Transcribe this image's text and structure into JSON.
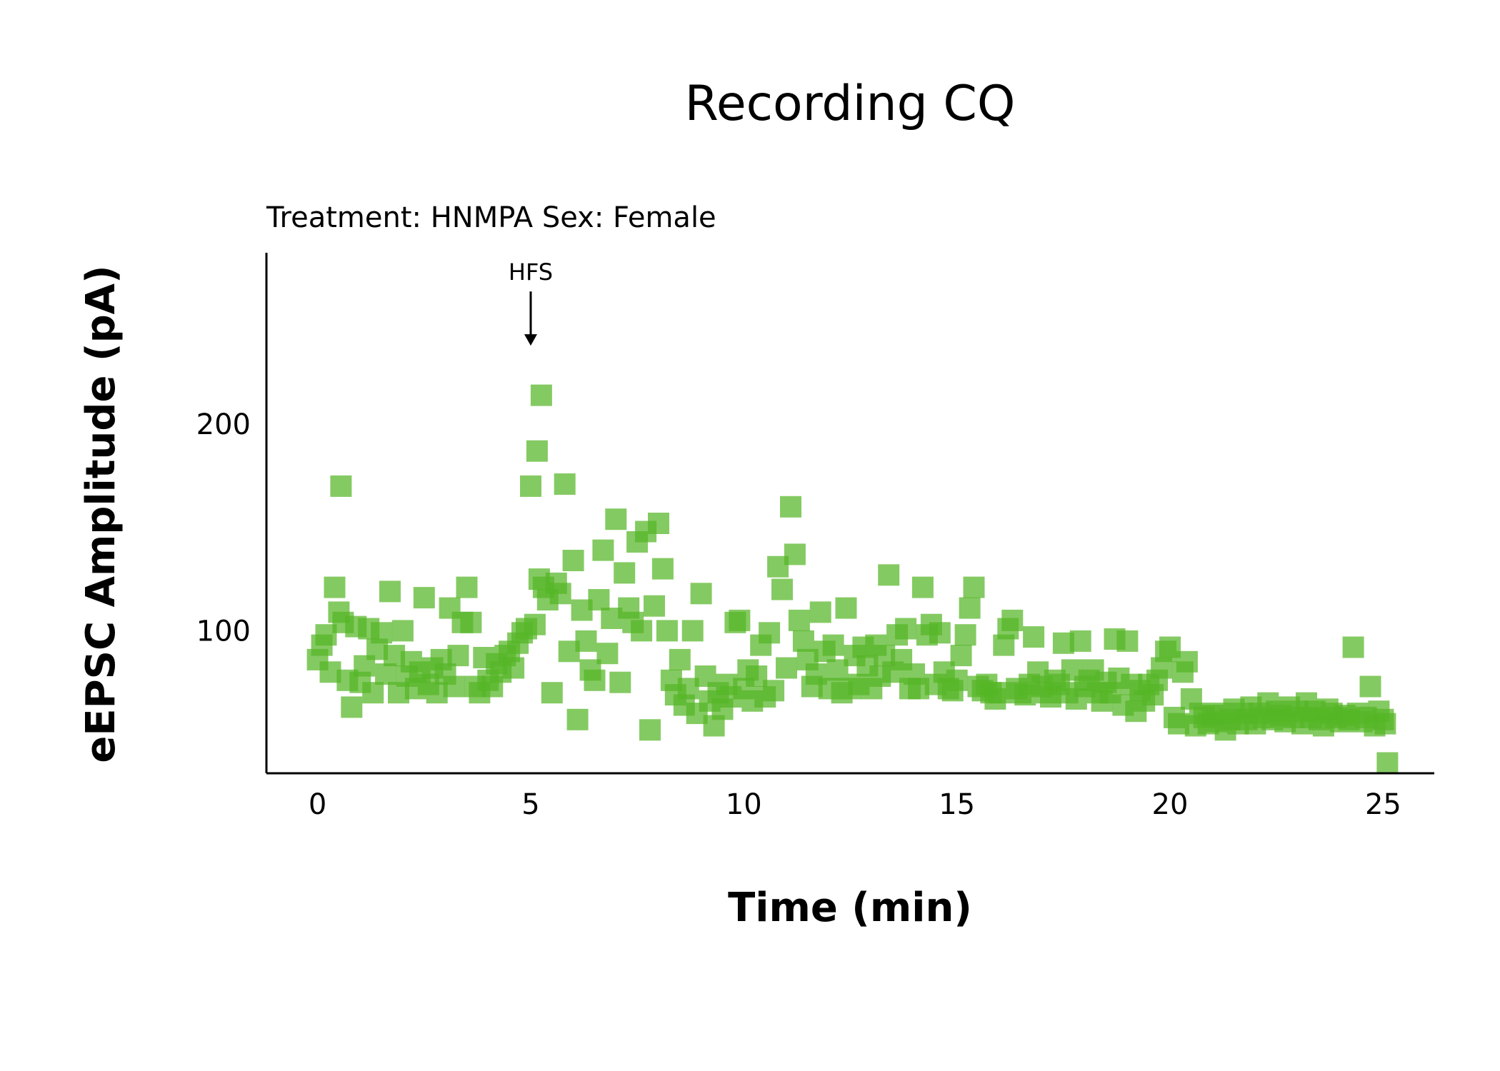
{
  "chart_data": {
    "type": "scatter",
    "title": "Recording CQ",
    "subtitle": "Treatment: HNMPA  Sex: Female",
    "xlabel": "Time (min)",
    "ylabel": "eEPSC Amplitude (pA)",
    "xlim": [
      -1.2,
      26.2
    ],
    "ylim": [
      31,
      283
    ],
    "xticks": [
      "0",
      "5",
      "10",
      "15",
      "20",
      "25"
    ],
    "yticks": [
      "100",
      "200"
    ],
    "grid": false,
    "legend": "none",
    "marker_color": "#55b526",
    "annotation": {
      "text": "HFS",
      "x": 5,
      "y": 238
    },
    "points": [
      [
        0.0,
        86
      ],
      [
        0.1,
        93
      ],
      [
        0.2,
        98
      ],
      [
        0.3,
        80
      ],
      [
        0.4,
        121
      ],
      [
        0.5,
        109
      ],
      [
        0.55,
        170
      ],
      [
        0.6,
        104
      ],
      [
        0.7,
        76
      ],
      [
        0.8,
        63
      ],
      [
        0.9,
        102
      ],
      [
        1.0,
        75
      ],
      [
        1.1,
        83
      ],
      [
        1.2,
        101
      ],
      [
        1.3,
        70
      ],
      [
        1.4,
        91
      ],
      [
        1.5,
        99
      ],
      [
        1.6,
        79
      ],
      [
        1.7,
        119
      ],
      [
        1.8,
        88
      ],
      [
        1.9,
        70
      ],
      [
        2.0,
        100
      ],
      [
        2.1,
        78
      ],
      [
        2.2,
        85
      ],
      [
        2.3,
        72
      ],
      [
        2.4,
        80
      ],
      [
        2.5,
        116
      ],
      [
        2.6,
        74
      ],
      [
        2.7,
        82
      ],
      [
        2.8,
        70
      ],
      [
        2.9,
        86
      ],
      [
        3.0,
        79
      ],
      [
        3.1,
        111
      ],
      [
        3.2,
        73
      ],
      [
        3.3,
        88
      ],
      [
        3.4,
        104
      ],
      [
        3.5,
        121
      ],
      [
        3.6,
        104
      ],
      [
        3.7,
        73
      ],
      [
        3.8,
        70
      ],
      [
        3.9,
        87
      ],
      [
        4.0,
        76
      ],
      [
        4.1,
        73
      ],
      [
        4.2,
        84
      ],
      [
        4.3,
        80
      ],
      [
        4.4,
        88
      ],
      [
        4.5,
        90
      ],
      [
        4.6,
        82
      ],
      [
        4.7,
        94
      ],
      [
        4.8,
        99
      ],
      [
        4.9,
        101
      ],
      [
        5.0,
        170
      ],
      [
        5.1,
        103
      ],
      [
        5.15,
        187
      ],
      [
        5.2,
        125
      ],
      [
        5.25,
        214
      ],
      [
        5.3,
        121
      ],
      [
        5.4,
        115
      ],
      [
        5.5,
        70
      ],
      [
        5.6,
        123
      ],
      [
        5.7,
        118
      ],
      [
        5.8,
        171
      ],
      [
        5.9,
        90
      ],
      [
        6.0,
        134
      ],
      [
        6.1,
        57
      ],
      [
        6.2,
        110
      ],
      [
        6.3,
        95
      ],
      [
        6.4,
        81
      ],
      [
        6.5,
        76
      ],
      [
        6.6,
        115
      ],
      [
        6.7,
        139
      ],
      [
        6.8,
        89
      ],
      [
        6.9,
        106
      ],
      [
        7.0,
        154
      ],
      [
        7.1,
        75
      ],
      [
        7.2,
        128
      ],
      [
        7.3,
        111
      ],
      [
        7.4,
        104
      ],
      [
        7.5,
        143
      ],
      [
        7.6,
        100
      ],
      [
        7.7,
        148
      ],
      [
        7.8,
        52
      ],
      [
        7.9,
        112
      ],
      [
        8.0,
        152
      ],
      [
        8.1,
        130
      ],
      [
        8.2,
        100
      ],
      [
        8.3,
        76
      ],
      [
        8.4,
        69
      ],
      [
        8.5,
        86
      ],
      [
        8.6,
        64
      ],
      [
        8.7,
        72
      ],
      [
        8.8,
        100
      ],
      [
        8.9,
        60
      ],
      [
        9.0,
        118
      ],
      [
        9.1,
        78
      ],
      [
        9.2,
        66
      ],
      [
        9.3,
        54
      ],
      [
        9.4,
        70
      ],
      [
        9.5,
        62
      ],
      [
        9.6,
        74
      ],
      [
        9.7,
        68
      ],
      [
        9.8,
        104
      ],
      [
        9.9,
        105
      ],
      [
        10.0,
        72
      ],
      [
        10.1,
        81
      ],
      [
        10.2,
        66
      ],
      [
        10.3,
        78
      ],
      [
        10.4,
        93
      ],
      [
        10.5,
        68
      ],
      [
        10.6,
        99
      ],
      [
        10.7,
        71
      ],
      [
        10.8,
        131
      ],
      [
        10.9,
        120
      ],
      [
        11.0,
        82
      ],
      [
        11.1,
        160
      ],
      [
        11.2,
        137
      ],
      [
        11.3,
        105
      ],
      [
        11.4,
        95
      ],
      [
        11.5,
        86
      ],
      [
        11.6,
        73
      ],
      [
        11.7,
        79
      ],
      [
        11.8,
        109
      ],
      [
        11.9,
        90
      ],
      [
        12.0,
        72
      ],
      [
        12.1,
        93
      ],
      [
        12.2,
        81
      ],
      [
        12.3,
        70
      ],
      [
        12.4,
        111
      ],
      [
        12.5,
        72
      ],
      [
        12.6,
        88
      ],
      [
        12.7,
        74
      ],
      [
        12.8,
        92
      ],
      [
        12.9,
        83
      ],
      [
        13.0,
        72
      ],
      [
        13.1,
        93
      ],
      [
        13.2,
        78
      ],
      [
        13.3,
        88
      ],
      [
        13.4,
        127
      ],
      [
        13.5,
        80
      ],
      [
        13.6,
        98
      ],
      [
        13.7,
        86
      ],
      [
        13.8,
        101
      ],
      [
        13.9,
        72
      ],
      [
        14.0,
        79
      ],
      [
        14.1,
        72
      ],
      [
        14.2,
        121
      ],
      [
        14.3,
        98
      ],
      [
        14.4,
        103
      ],
      [
        14.5,
        74
      ],
      [
        14.6,
        99
      ],
      [
        14.7,
        80
      ],
      [
        14.8,
        72
      ],
      [
        14.9,
        71
      ],
      [
        15.0,
        76
      ],
      [
        15.1,
        88
      ],
      [
        15.2,
        98
      ],
      [
        15.3,
        111
      ],
      [
        15.4,
        121
      ],
      [
        15.5,
        73
      ],
      [
        15.6,
        71
      ],
      [
        15.7,
        74
      ],
      [
        15.8,
        70
      ],
      [
        15.9,
        67
      ],
      [
        16.0,
        70
      ],
      [
        16.1,
        93
      ],
      [
        16.2,
        101
      ],
      [
        16.3,
        105
      ],
      [
        16.4,
        72
      ],
      [
        16.5,
        70
      ],
      [
        16.6,
        69
      ],
      [
        16.7,
        74
      ],
      [
        16.8,
        97
      ],
      [
        16.9,
        80
      ],
      [
        17.0,
        73
      ],
      [
        17.1,
        70
      ],
      [
        17.2,
        68
      ],
      [
        17.3,
        76
      ],
      [
        17.4,
        74
      ],
      [
        17.5,
        94
      ],
      [
        17.6,
        70
      ],
      [
        17.7,
        81
      ],
      [
        17.8,
        67
      ],
      [
        17.9,
        95
      ],
      [
        18.0,
        73
      ],
      [
        18.1,
        76
      ],
      [
        18.2,
        81
      ],
      [
        18.3,
        70
      ],
      [
        18.4,
        66
      ],
      [
        18.5,
        75
      ],
      [
        18.6,
        70
      ],
      [
        18.7,
        96
      ],
      [
        18.8,
        77
      ],
      [
        18.9,
        64
      ],
      [
        19.0,
        95
      ],
      [
        19.1,
        74
      ],
      [
        19.2,
        61
      ],
      [
        19.3,
        71
      ],
      [
        19.4,
        66
      ],
      [
        19.5,
        74
      ],
      [
        19.6,
        69
      ],
      [
        19.7,
        76
      ],
      [
        19.8,
        82
      ],
      [
        19.9,
        90
      ],
      [
        20.0,
        92
      ],
      [
        20.1,
        58
      ],
      [
        20.2,
        55
      ],
      [
        20.3,
        80
      ],
      [
        20.4,
        85
      ],
      [
        20.5,
        67
      ],
      [
        20.6,
        54
      ],
      [
        20.7,
        60
      ],
      [
        20.8,
        58
      ],
      [
        20.9,
        55
      ],
      [
        21.0,
        59
      ],
      [
        21.1,
        56
      ],
      [
        21.2,
        60
      ],
      [
        21.3,
        52
      ],
      [
        21.4,
        57
      ],
      [
        21.5,
        62
      ],
      [
        21.6,
        55
      ],
      [
        21.7,
        60
      ],
      [
        21.8,
        57
      ],
      [
        21.9,
        63
      ],
      [
        22.0,
        55
      ],
      [
        22.1,
        60
      ],
      [
        22.2,
        58
      ],
      [
        22.3,
        65
      ],
      [
        22.4,
        57
      ],
      [
        22.5,
        61
      ],
      [
        22.6,
        59
      ],
      [
        22.7,
        56
      ],
      [
        22.8,
        63
      ],
      [
        22.9,
        58
      ],
      [
        23.0,
        61
      ],
      [
        23.1,
        55
      ],
      [
        23.2,
        65
      ],
      [
        23.3,
        58
      ],
      [
        23.4,
        61
      ],
      [
        23.5,
        57
      ],
      [
        23.6,
        54
      ],
      [
        23.7,
        62
      ],
      [
        23.8,
        60
      ],
      [
        23.9,
        58
      ],
      [
        24.0,
        56
      ],
      [
        24.1,
        59
      ],
      [
        24.2,
        57
      ],
      [
        24.3,
        92
      ],
      [
        24.4,
        60
      ],
      [
        24.5,
        56
      ],
      [
        24.6,
        58
      ],
      [
        24.7,
        73
      ],
      [
        24.8,
        54
      ],
      [
        24.9,
        61
      ],
      [
        25.0,
        57
      ],
      [
        25.05,
        55
      ],
      [
        25.1,
        36
      ]
    ]
  }
}
